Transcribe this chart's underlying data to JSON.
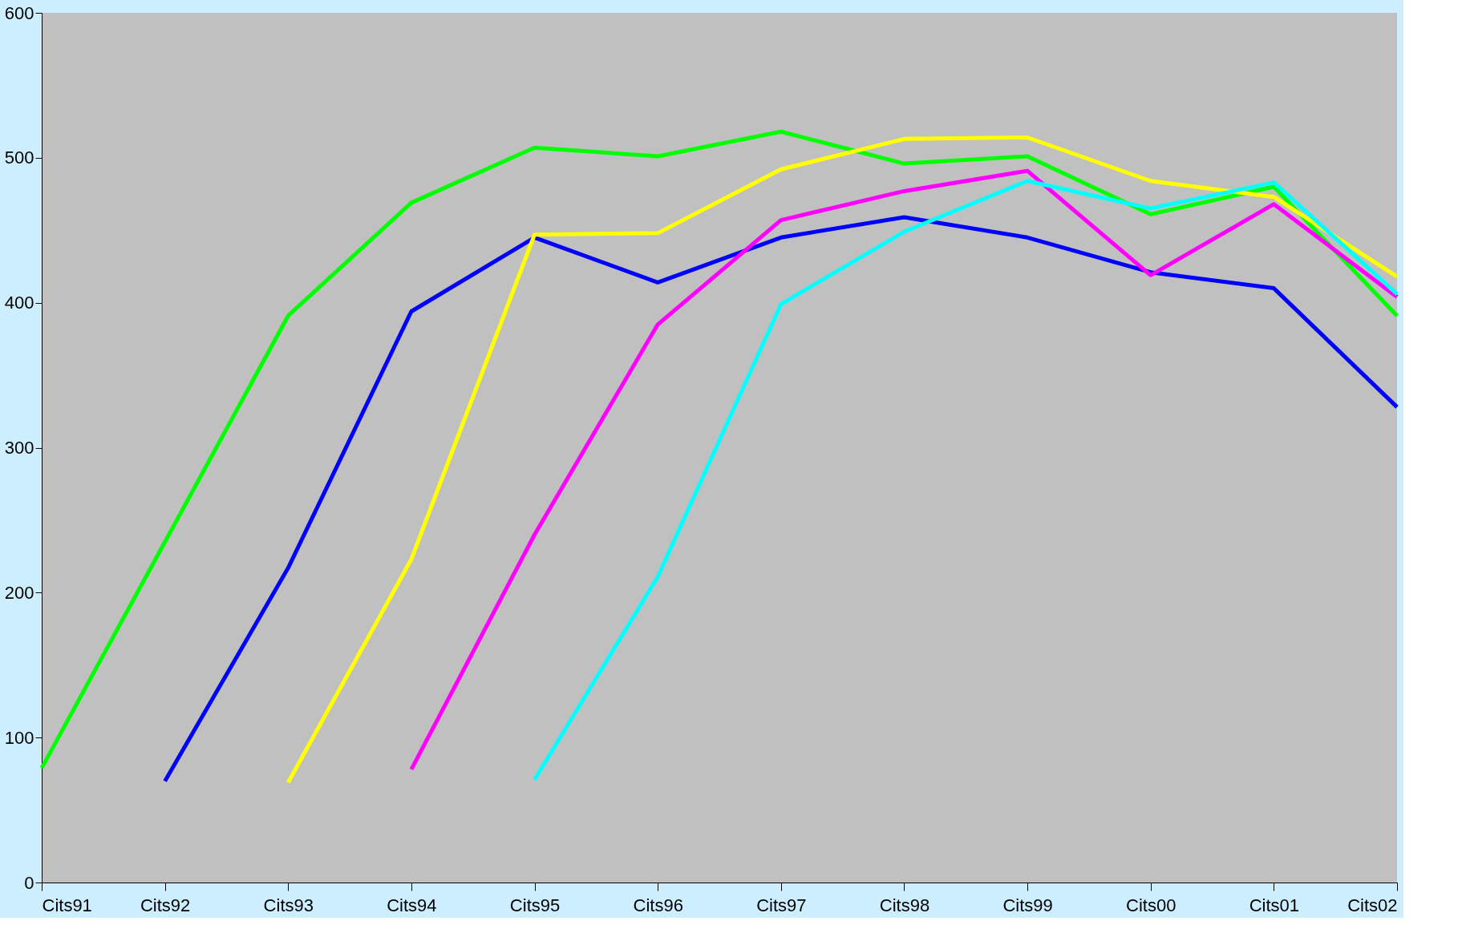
{
  "chart_data": {
    "type": "line",
    "categories": [
      "Cits91",
      "Cits92",
      "Cits93",
      "Cits94",
      "Cits95",
      "Cits96",
      "Cits97",
      "Cits98",
      "Cits99",
      "Cits00",
      "Cits01",
      "Cits02"
    ],
    "series": [
      {
        "color": "#00ff00",
        "values": [
          79,
          235,
          391,
          469,
          507,
          501,
          518,
          496,
          501,
          461,
          480,
          391
        ]
      },
      {
        "color": "#0000ff",
        "values": [
          null,
          70,
          217,
          394,
          445,
          414,
          445,
          459,
          445,
          421,
          410,
          328
        ]
      },
      {
        "color": "#ffff00",
        "values": [
          null,
          null,
          69,
          223,
          447,
          448,
          492,
          513,
          514,
          484,
          473,
          418
        ]
      },
      {
        "color": "#ff00ff",
        "values": [
          null,
          null,
          null,
          78,
          240,
          385,
          457,
          477,
          491,
          419,
          468,
          404
        ]
      },
      {
        "color": "#00ffff",
        "values": [
          null,
          null,
          null,
          null,
          71,
          211,
          399,
          449,
          484,
          465,
          483,
          406
        ]
      }
    ],
    "ylim": [
      0,
      600
    ],
    "yticks": [
      0,
      100,
      200,
      300,
      400,
      500,
      600
    ],
    "grid": false,
    "legend": false,
    "marker": "none",
    "line_style": "solid"
  }
}
